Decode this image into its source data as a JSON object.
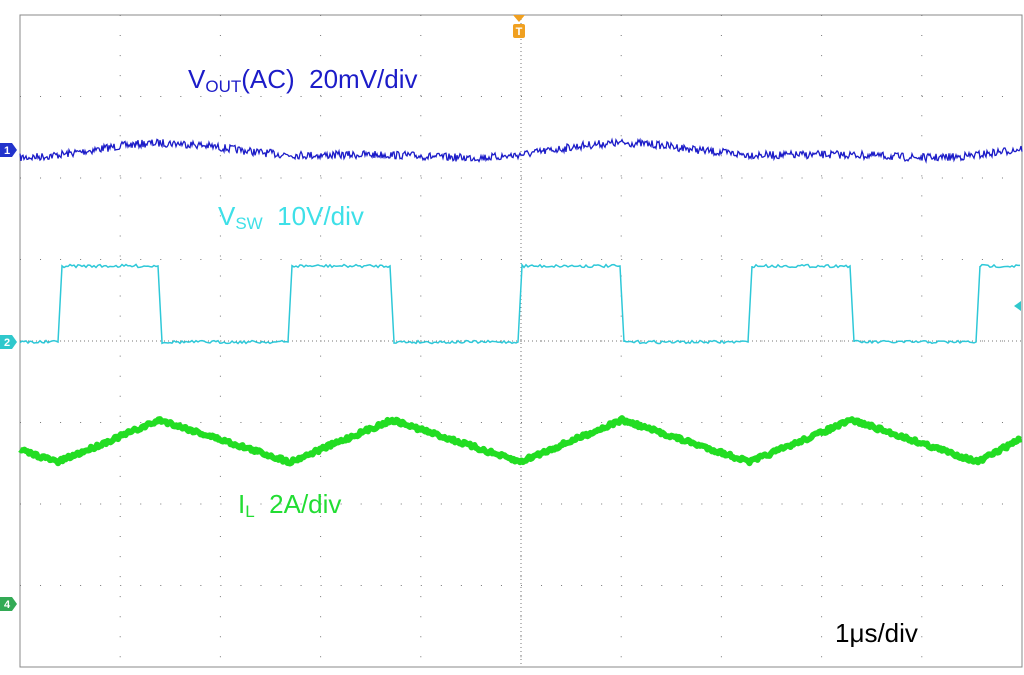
{
  "trigger_marker": "T",
  "channel_markers": [
    "1",
    "2",
    "4"
  ],
  "trace_labels": [
    {
      "main": "V",
      "sub": "OUT",
      "rest": "(AC)  20mV/div"
    },
    {
      "main": "V",
      "sub": "SW",
      "rest": "  10V/div"
    },
    {
      "main": "I",
      "sub": "L",
      "rest": "  2A/div"
    }
  ],
  "timebase": "1μs/div"
}
